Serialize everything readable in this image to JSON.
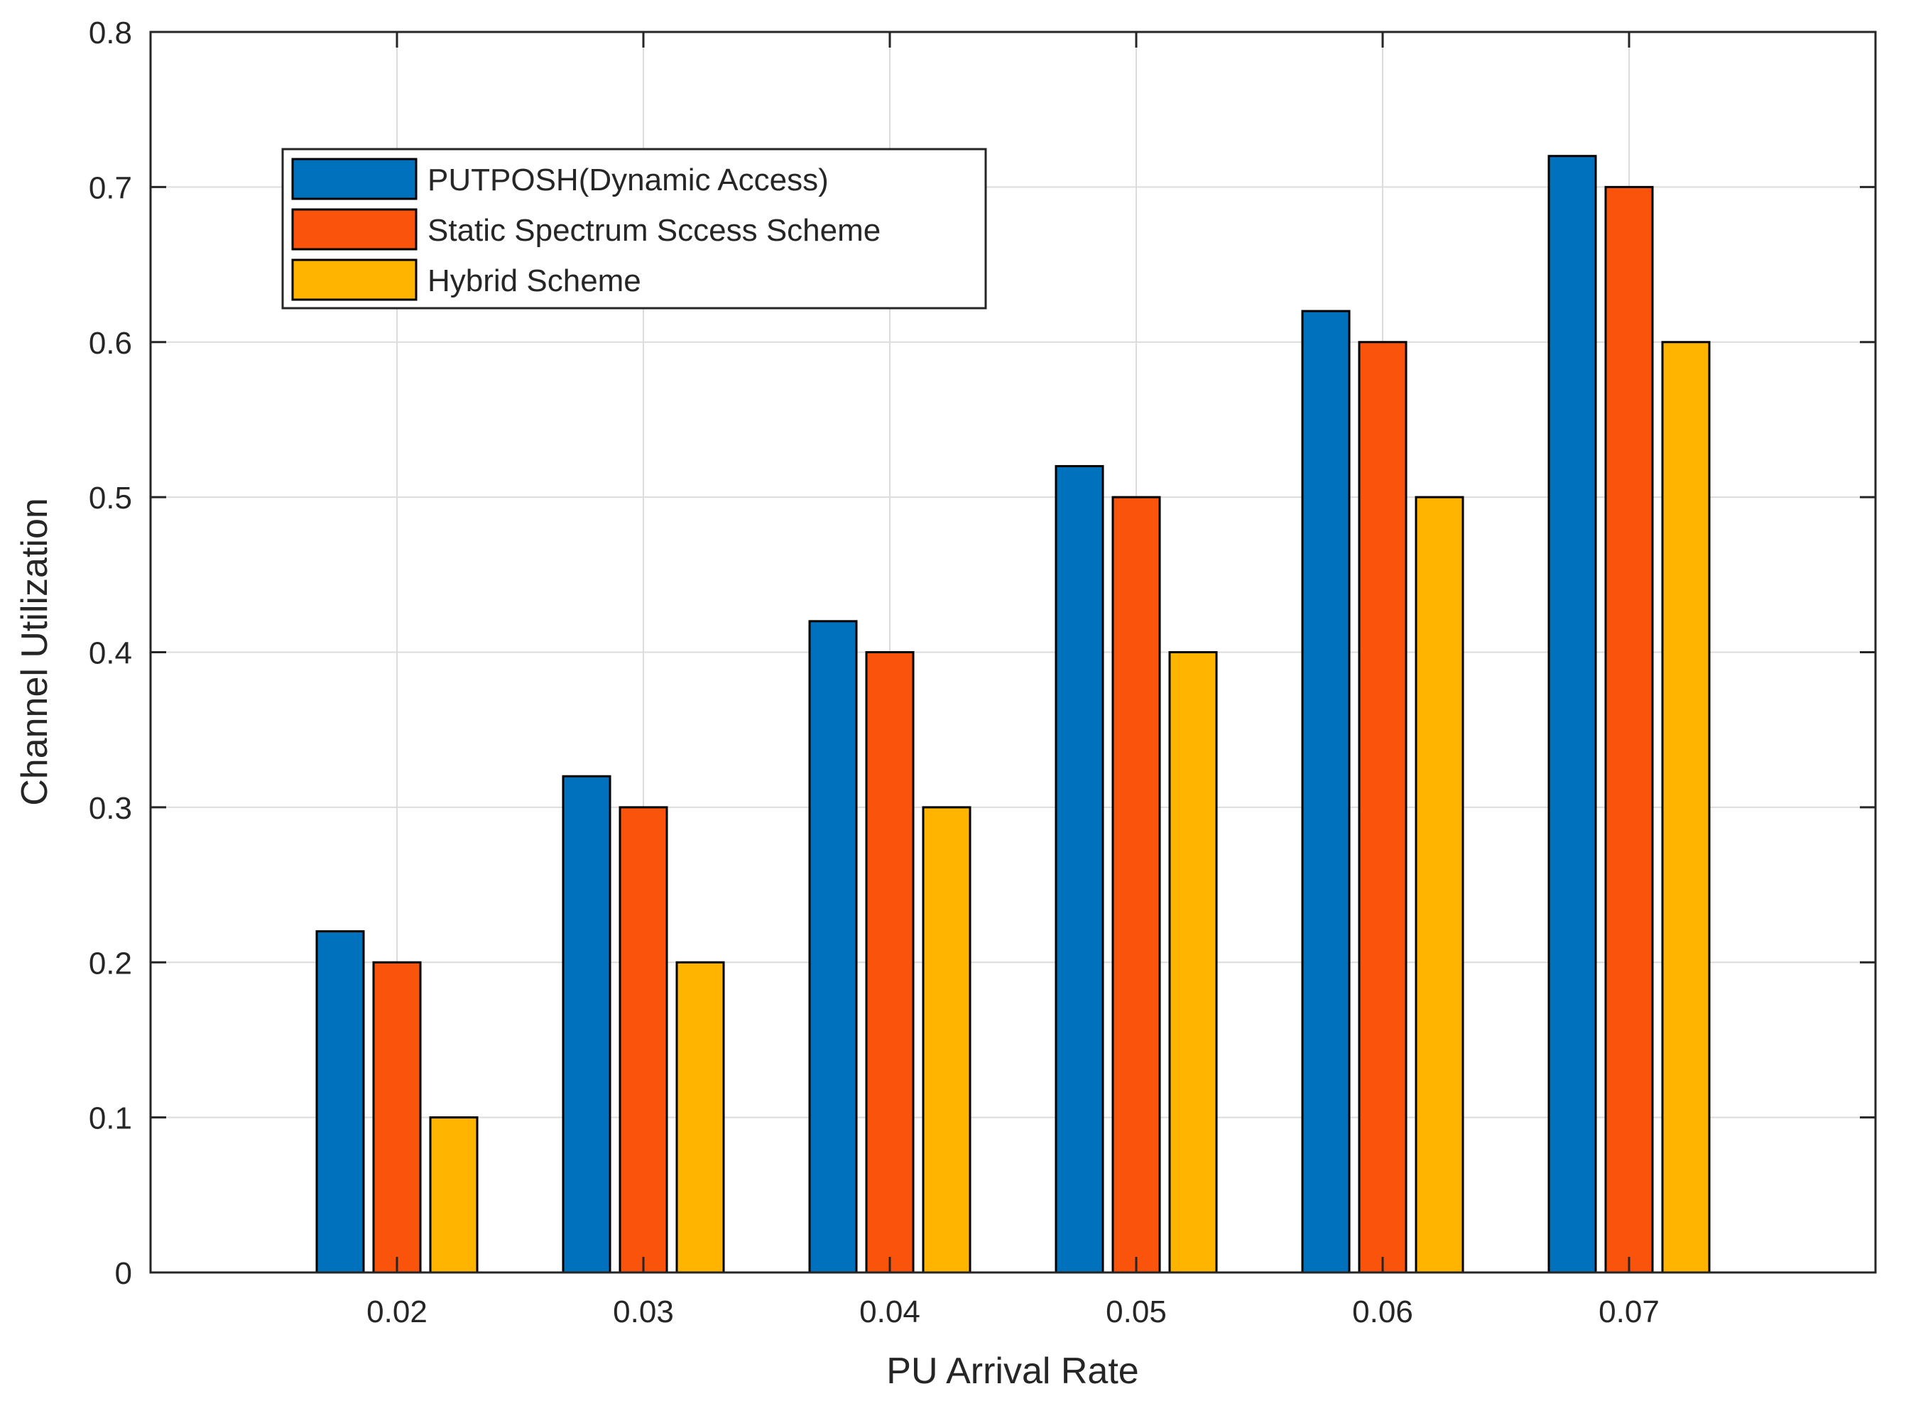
{
  "chart_data": {
    "type": "bar",
    "title": "",
    "xlabel": "PU Arrival Rate",
    "ylabel": "Channel Utilization",
    "categories": [
      "0.02",
      "0.03",
      "0.04",
      "0.05",
      "0.06",
      "0.07"
    ],
    "series": [
      {
        "name": "PUTPOSH(Dynamic Access)",
        "color": "#0072BD",
        "values": [
          0.22,
          0.32,
          0.42,
          0.52,
          0.62,
          0.72
        ]
      },
      {
        "name": "Static Spectrum Sccess Scheme",
        "color": "#F9530C",
        "values": [
          0.2,
          0.3,
          0.4,
          0.5,
          0.6,
          0.7
        ]
      },
      {
        "name": "Hybrid Scheme",
        "color": "#FFB400",
        "values": [
          0.1,
          0.2,
          0.3,
          0.4,
          0.5,
          0.6
        ]
      }
    ],
    "xlim": [
      0.01,
      0.08
    ],
    "ylim": [
      0,
      0.8
    ],
    "yticks": [
      "0",
      "0.1",
      "0.2",
      "0.3",
      "0.4",
      "0.5",
      "0.6",
      "0.7",
      "0.8"
    ],
    "grid": true,
    "legend_position": "top-left"
  }
}
